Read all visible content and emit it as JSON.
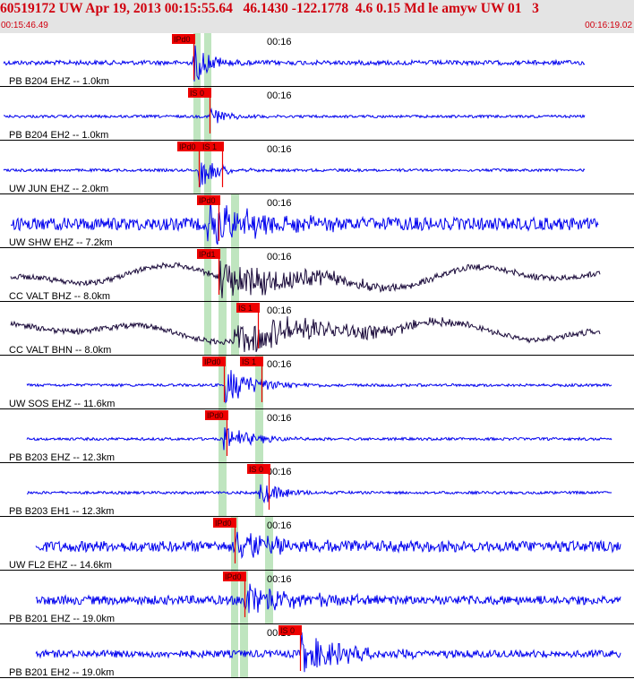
{
  "header": {
    "title": "60519172 UW Apr 19, 2013 00:15:55.64   46.1430 -122.1778  4.6 0.15 Md le amyw UW 01   3",
    "start_time": "00:15:46.49",
    "end_time": "00:16:19.02"
  },
  "minute_mark_label": "00:16",
  "colors": {
    "header_text": "#d0000e",
    "header_bg": "#e4e4e4",
    "trace_vertical": "#0000ee",
    "trace_horizontal": "#1a0a3a",
    "pick_flag": "#ee0000",
    "pick_window": "#bfe5bf",
    "separator": "#000000"
  },
  "traces": [
    {
      "label": "PB B204 EHZ -- 1.0km",
      "color": "blue",
      "picks": [
        {
          "text": "IPd0"
        }
      ]
    },
    {
      "label": "PB B204 EH2 -- 1.0km",
      "color": "blue",
      "picks": [
        {
          "text": "IS 0"
        }
      ]
    },
    {
      "label": "UW JUN EHZ -- 2.0km",
      "color": "blue",
      "picks": [
        {
          "text": "IPd0"
        },
        {
          "text": "IS 1"
        }
      ]
    },
    {
      "label": "UW SHW EHZ -- 7.2km",
      "color": "blue",
      "picks": [
        {
          "text": "IPd0"
        }
      ]
    },
    {
      "label": "CC VALT BHZ -- 8.0km",
      "color": "dark",
      "picks": [
        {
          "text": "IPd1"
        }
      ]
    },
    {
      "label": "CC VALT BHN -- 8.0km",
      "color": "dark",
      "picks": [
        {
          "text": "IS 1"
        }
      ]
    },
    {
      "label": "UW SOS EHZ -- 11.6km",
      "color": "blue",
      "picks": [
        {
          "text": "IPd0"
        },
        {
          "text": "IS 1"
        }
      ]
    },
    {
      "label": "PB B203 EHZ -- 12.3km",
      "color": "blue",
      "picks": [
        {
          "text": "IPd0"
        }
      ]
    },
    {
      "label": "PB B203 EH1 -- 12.3km",
      "color": "blue",
      "picks": [
        {
          "text": "IS 0"
        }
      ]
    },
    {
      "label": "UW FL2 EHZ -- 14.6km",
      "color": "blue",
      "picks": [
        {
          "text": "IPd0"
        }
      ]
    },
    {
      "label": "PB B201 EHZ -- 19.0km",
      "color": "blue",
      "picks": [
        {
          "text": "IPd0"
        }
      ]
    },
    {
      "label": "PB B201 EH2 -- 19.0km",
      "color": "blue",
      "picks": [
        {
          "text": "IS 0"
        }
      ]
    }
  ]
}
